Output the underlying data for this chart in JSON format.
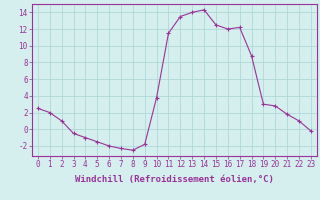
{
  "x": [
    0,
    1,
    2,
    3,
    4,
    5,
    6,
    7,
    8,
    9,
    10,
    11,
    12,
    13,
    14,
    15,
    16,
    17,
    18,
    19,
    20,
    21,
    22,
    23
  ],
  "y": [
    2.5,
    2.0,
    1.0,
    -0.5,
    -1.0,
    -1.5,
    -2.0,
    -2.3,
    -2.5,
    -1.8,
    3.8,
    11.5,
    13.5,
    14.0,
    14.3,
    12.5,
    12.0,
    12.2,
    8.8,
    3.0,
    2.8,
    1.8,
    1.0,
    -0.2
  ],
  "line_color": "#993399",
  "marker": "P",
  "marker_size": 2.5,
  "bg_color": "#d5eeee",
  "grid_color": "#b0d8d8",
  "xlabel": "Windchill (Refroidissement éolien,°C)",
  "xlim": [
    -0.5,
    23.5
  ],
  "ylim": [
    -3.2,
    15.0
  ],
  "yticks": [
    -2,
    0,
    2,
    4,
    6,
    8,
    10,
    12,
    14
  ],
  "xticks": [
    0,
    1,
    2,
    3,
    4,
    5,
    6,
    7,
    8,
    9,
    10,
    11,
    12,
    13,
    14,
    15,
    16,
    17,
    18,
    19,
    20,
    21,
    22,
    23
  ],
  "tick_label_size": 5.5,
  "xlabel_fontsize": 6.5,
  "tick_color": "#993399",
  "spine_color": "#993399"
}
